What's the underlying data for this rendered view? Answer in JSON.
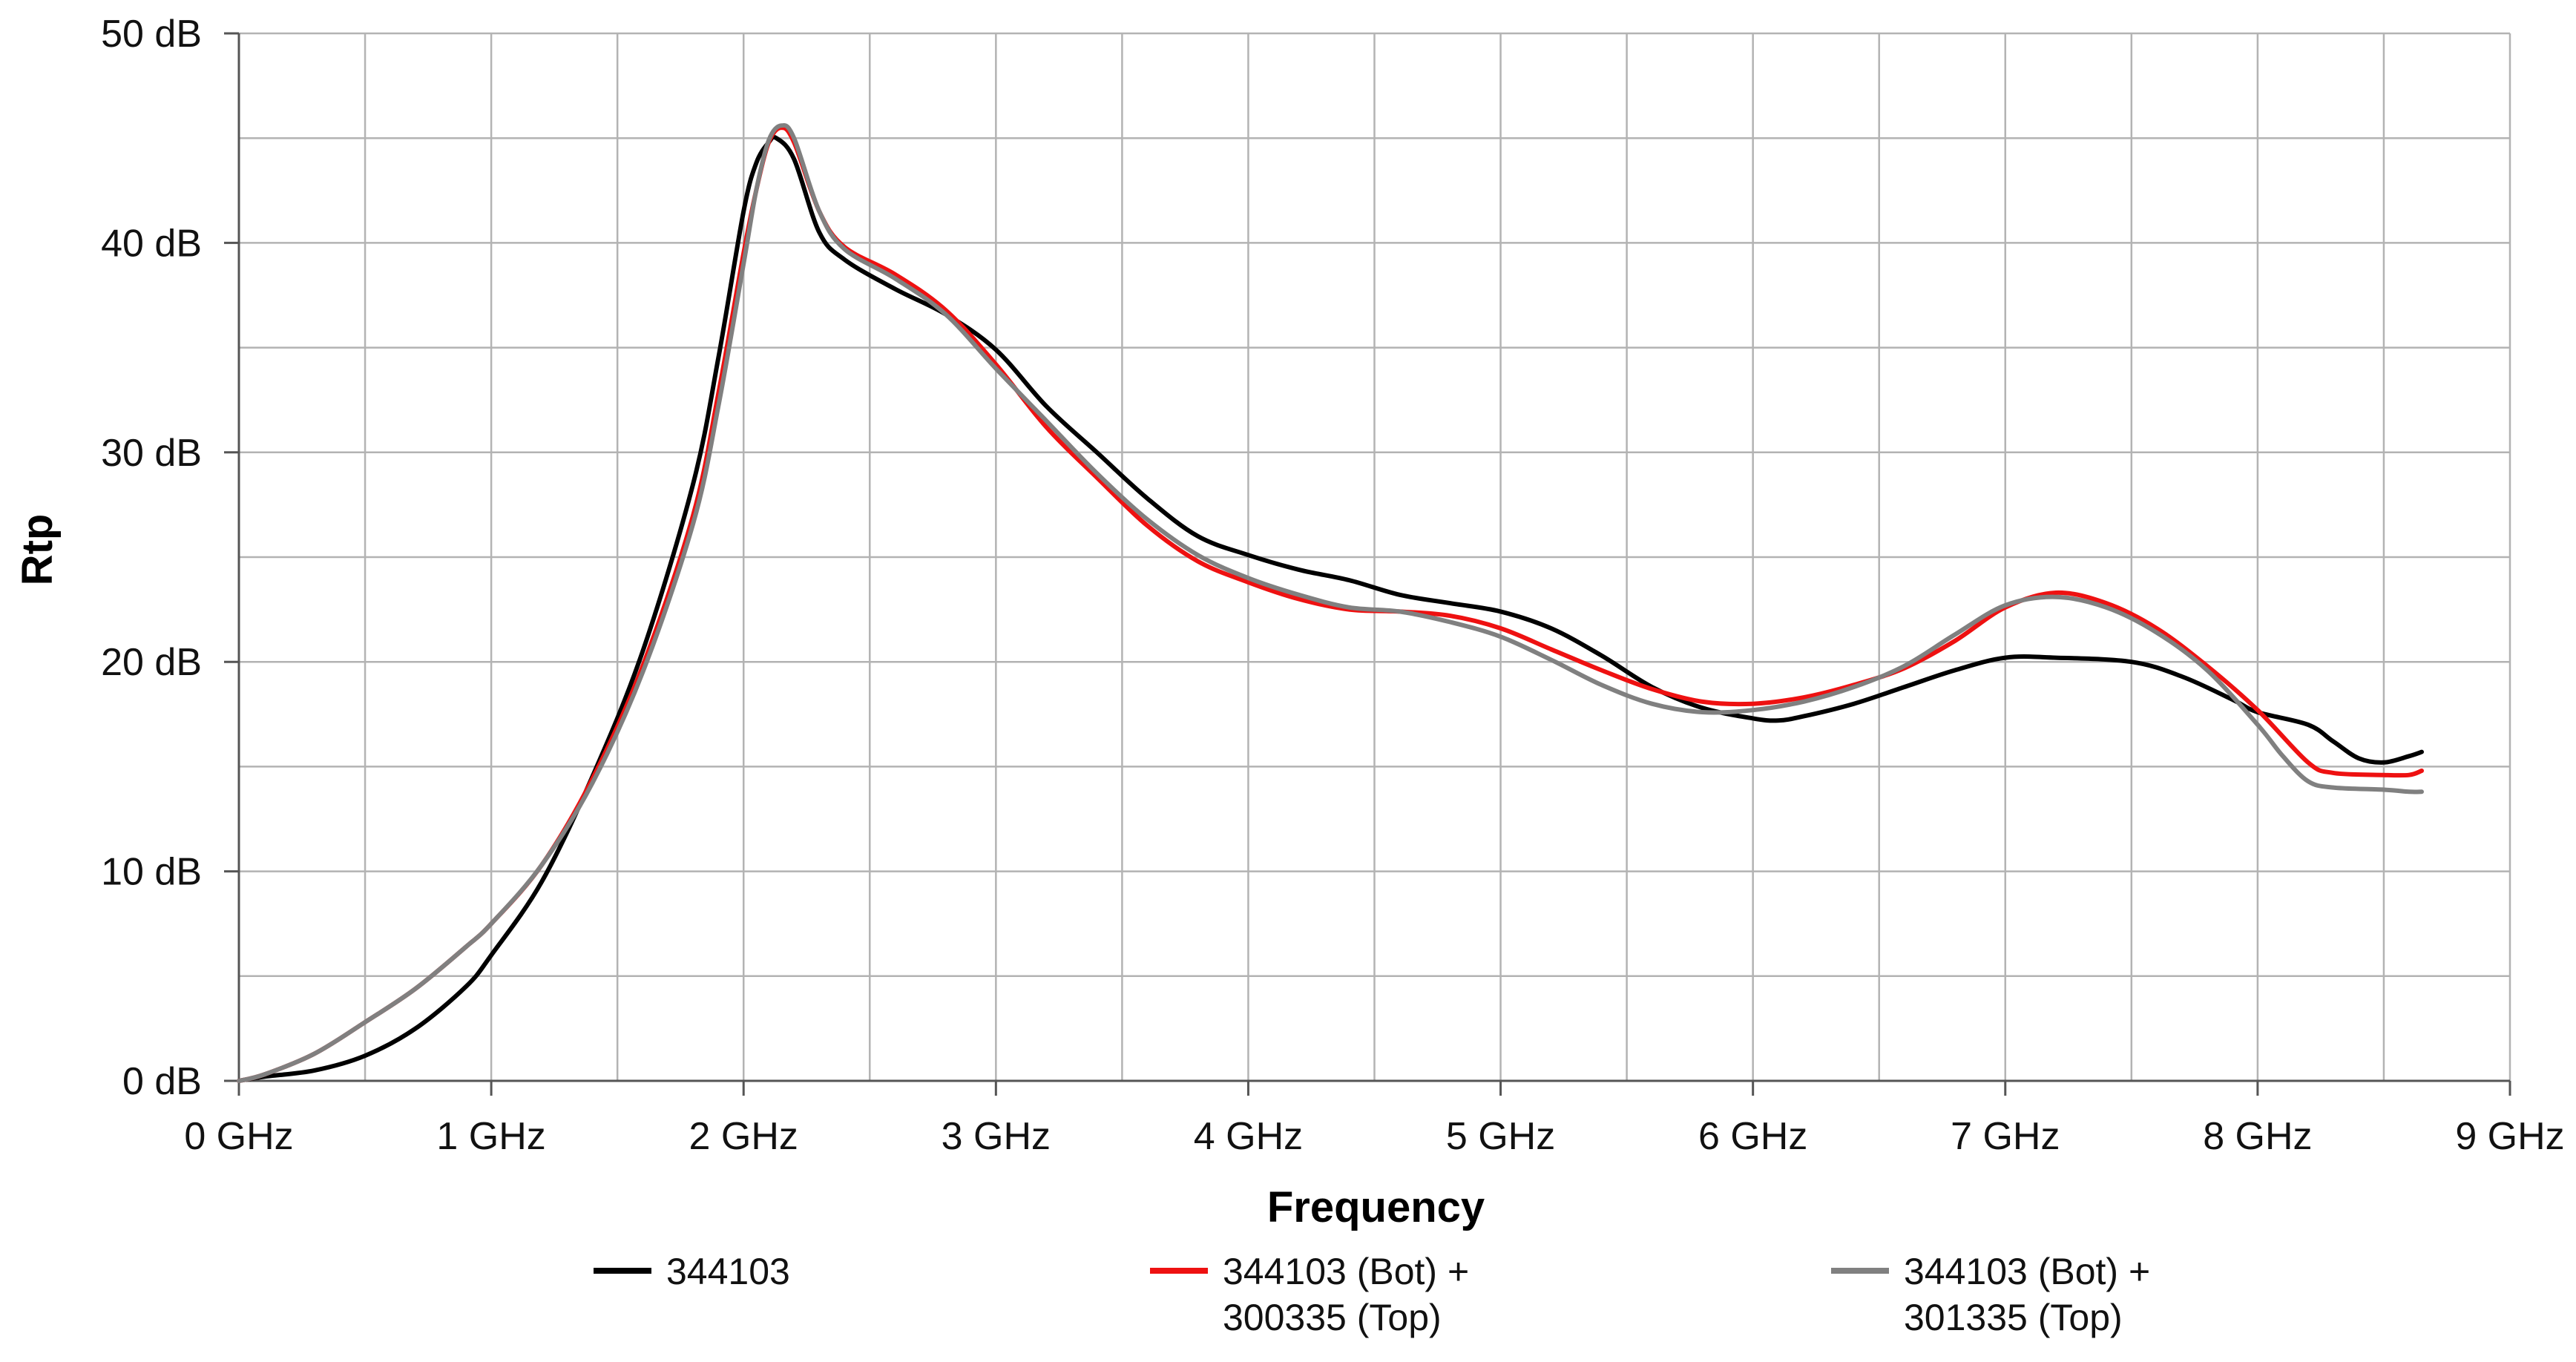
{
  "chart_data": {
    "type": "line",
    "title": "",
    "xlabel": "Frequency",
    "ylabel": "Rtp",
    "xlim": [
      0,
      9
    ],
    "ylim": [
      0,
      50
    ],
    "x_unit": "GHz",
    "y_unit": "dB",
    "grid": true,
    "legend_position": "bottom",
    "x_ticks": [
      0,
      1,
      2,
      3,
      4,
      5,
      6,
      7,
      8,
      9
    ],
    "x_tick_labels": [
      "0 GHz",
      "1 GHz",
      "2 GHz",
      "3 GHz",
      "4 GHz",
      "5 GHz",
      "6 GHz",
      "7 GHz",
      "8 GHz",
      "9 GHz"
    ],
    "y_ticks": [
      0,
      10,
      20,
      30,
      40,
      50
    ],
    "y_tick_labels": [
      "0 dB",
      "10 dB",
      "20 dB",
      "30 dB",
      "40 dB",
      "50 dB"
    ],
    "series": [
      {
        "name": "344103",
        "legend_lines": [
          "344103"
        ],
        "color": "#000000",
        "points": [
          [
            0,
            0
          ],
          [
            0.1,
            0.2
          ],
          [
            0.3,
            0.5
          ],
          [
            0.5,
            1.2
          ],
          [
            0.7,
            2.5
          ],
          [
            0.9,
            4.5
          ],
          [
            1.0,
            6.0
          ],
          [
            1.2,
            9.5
          ],
          [
            1.4,
            14.5
          ],
          [
            1.6,
            20.5
          ],
          [
            1.8,
            28.5
          ],
          [
            1.9,
            34.5
          ],
          [
            2.0,
            41.5
          ],
          [
            2.05,
            43.8
          ],
          [
            2.1,
            44.8
          ],
          [
            2.13,
            45.0
          ],
          [
            2.2,
            44.0
          ],
          [
            2.3,
            40.5
          ],
          [
            2.4,
            39.2
          ],
          [
            2.6,
            37.8
          ],
          [
            2.8,
            36.6
          ],
          [
            3.0,
            34.9
          ],
          [
            3.2,
            32.2
          ],
          [
            3.4,
            30.0
          ],
          [
            3.6,
            27.8
          ],
          [
            3.8,
            26.0
          ],
          [
            4.0,
            25.1
          ],
          [
            4.2,
            24.4
          ],
          [
            4.4,
            23.9
          ],
          [
            4.6,
            23.2
          ],
          [
            4.8,
            22.8
          ],
          [
            5.0,
            22.4
          ],
          [
            5.2,
            21.6
          ],
          [
            5.4,
            20.3
          ],
          [
            5.6,
            18.8
          ],
          [
            5.8,
            17.8
          ],
          [
            6.0,
            17.3
          ],
          [
            6.1,
            17.2
          ],
          [
            6.2,
            17.4
          ],
          [
            6.4,
            18.0
          ],
          [
            6.6,
            18.8
          ],
          [
            6.8,
            19.6
          ],
          [
            7.0,
            20.2
          ],
          [
            7.2,
            20.2
          ],
          [
            7.5,
            20.0
          ],
          [
            7.7,
            19.3
          ],
          [
            7.9,
            18.2
          ],
          [
            8.0,
            17.6
          ],
          [
            8.2,
            17.0
          ],
          [
            8.3,
            16.2
          ],
          [
            8.4,
            15.4
          ],
          [
            8.5,
            15.2
          ],
          [
            8.6,
            15.5
          ],
          [
            8.65,
            15.7
          ]
        ]
      },
      {
        "name": "344103 (Bot) + 300335 (Top)",
        "legend_lines": [
          "344103 (Bot) +",
          "300335 (Top)"
        ],
        "color": "#ee1111",
        "points": [
          [
            0,
            0
          ],
          [
            0.1,
            0.3
          ],
          [
            0.3,
            1.3
          ],
          [
            0.5,
            2.8
          ],
          [
            0.7,
            4.4
          ],
          [
            0.9,
            6.4
          ],
          [
            1.0,
            7.5
          ],
          [
            1.2,
            10.3
          ],
          [
            1.4,
            14.4
          ],
          [
            1.6,
            19.8
          ],
          [
            1.8,
            27.0
          ],
          [
            1.9,
            32.8
          ],
          [
            2.0,
            39.5
          ],
          [
            2.05,
            42.5
          ],
          [
            2.1,
            44.8
          ],
          [
            2.15,
            45.5
          ],
          [
            2.2,
            44.8
          ],
          [
            2.3,
            41.5
          ],
          [
            2.4,
            39.8
          ],
          [
            2.6,
            38.5
          ],
          [
            2.8,
            36.8
          ],
          [
            3.0,
            34.2
          ],
          [
            3.2,
            31.2
          ],
          [
            3.4,
            28.8
          ],
          [
            3.6,
            26.5
          ],
          [
            3.8,
            24.8
          ],
          [
            4.0,
            23.8
          ],
          [
            4.2,
            23.0
          ],
          [
            4.4,
            22.5
          ],
          [
            4.6,
            22.4
          ],
          [
            4.8,
            22.2
          ],
          [
            5.0,
            21.6
          ],
          [
            5.2,
            20.6
          ],
          [
            5.4,
            19.6
          ],
          [
            5.6,
            18.7
          ],
          [
            5.8,
            18.1
          ],
          [
            6.0,
            18.0
          ],
          [
            6.2,
            18.3
          ],
          [
            6.4,
            18.9
          ],
          [
            6.6,
            19.7
          ],
          [
            6.8,
            21.0
          ],
          [
            7.0,
            22.6
          ],
          [
            7.2,
            23.3
          ],
          [
            7.4,
            22.8
          ],
          [
            7.6,
            21.6
          ],
          [
            7.8,
            19.8
          ],
          [
            8.0,
            17.7
          ],
          [
            8.2,
            15.2
          ],
          [
            8.3,
            14.7
          ],
          [
            8.5,
            14.6
          ],
          [
            8.6,
            14.6
          ],
          [
            8.65,
            14.8
          ]
        ]
      },
      {
        "name": "344103 (Bot) + 301335 (Top)",
        "legend_lines": [
          "344103 (Bot) +",
          "301335 (Top)"
        ],
        "color": "#808080",
        "points": [
          [
            0,
            0
          ],
          [
            0.1,
            0.3
          ],
          [
            0.3,
            1.3
          ],
          [
            0.5,
            2.8
          ],
          [
            0.7,
            4.4
          ],
          [
            0.9,
            6.4
          ],
          [
            1.0,
            7.5
          ],
          [
            1.2,
            10.3
          ],
          [
            1.4,
            14.2
          ],
          [
            1.6,
            19.5
          ],
          [
            1.8,
            26.6
          ],
          [
            1.9,
            32.2
          ],
          [
            2.0,
            39.0
          ],
          [
            2.05,
            42.5
          ],
          [
            2.1,
            44.9
          ],
          [
            2.15,
            45.6
          ],
          [
            2.2,
            45.0
          ],
          [
            2.3,
            41.5
          ],
          [
            2.4,
            39.7
          ],
          [
            2.6,
            38.3
          ],
          [
            2.8,
            36.6
          ],
          [
            3.0,
            34.0
          ],
          [
            3.2,
            31.5
          ],
          [
            3.4,
            29.0
          ],
          [
            3.6,
            26.8
          ],
          [
            3.8,
            25.1
          ],
          [
            4.0,
            24.0
          ],
          [
            4.2,
            23.2
          ],
          [
            4.4,
            22.6
          ],
          [
            4.6,
            22.4
          ],
          [
            4.8,
            21.9
          ],
          [
            5.0,
            21.2
          ],
          [
            5.2,
            20.1
          ],
          [
            5.4,
            18.9
          ],
          [
            5.6,
            18.0
          ],
          [
            5.8,
            17.6
          ],
          [
            6.0,
            17.7
          ],
          [
            6.2,
            18.1
          ],
          [
            6.4,
            18.8
          ],
          [
            6.6,
            19.8
          ],
          [
            6.8,
            21.3
          ],
          [
            7.0,
            22.7
          ],
          [
            7.2,
            23.1
          ],
          [
            7.4,
            22.6
          ],
          [
            7.6,
            21.4
          ],
          [
            7.8,
            19.6
          ],
          [
            8.0,
            17.0
          ],
          [
            8.1,
            15.5
          ],
          [
            8.2,
            14.3
          ],
          [
            8.3,
            14.0
          ],
          [
            8.5,
            13.9
          ],
          [
            8.6,
            13.8
          ],
          [
            8.65,
            13.8
          ]
        ]
      }
    ]
  }
}
